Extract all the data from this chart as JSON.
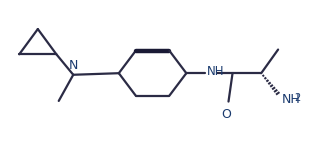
{
  "bg_color": "#ffffff",
  "line_color": "#2b2b45",
  "text_color": "#1a3a6e",
  "line_width": 1.6,
  "fig_width": 3.22,
  "fig_height": 1.59,
  "dpi": 100,
  "xlim": [
    0,
    9.5
  ],
  "ylim": [
    0,
    5
  ]
}
